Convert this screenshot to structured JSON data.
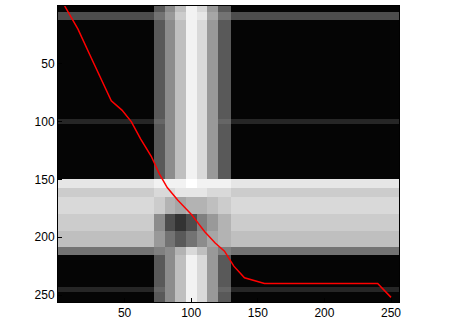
{
  "chart_data": {
    "type": "heatmap",
    "xlim": [
      0,
      256
    ],
    "ylim": [
      256,
      0
    ],
    "xticks": [
      50,
      100,
      150,
      200,
      250
    ],
    "yticks": [
      50,
      100,
      150,
      200,
      250
    ],
    "cells": {
      "x_edges": [
        0,
        72,
        80,
        88,
        96,
        104,
        112,
        120,
        130,
        256
      ],
      "y_edges": [
        0,
        5,
        12,
        98,
        102,
        150,
        157,
        165,
        180,
        195,
        208,
        215,
        243,
        247,
        256
      ],
      "z": [
        [
          0.02,
          0.35,
          0.55,
          0.75,
          0.95,
          0.85,
          0.6,
          0.35,
          0.02
        ],
        [
          0.3,
          0.45,
          0.6,
          0.8,
          0.95,
          0.9,
          0.65,
          0.45,
          0.3
        ],
        [
          0.02,
          0.35,
          0.55,
          0.75,
          0.95,
          0.85,
          0.6,
          0.35,
          0.02
        ],
        [
          0.15,
          0.4,
          0.55,
          0.75,
          0.95,
          0.85,
          0.6,
          0.4,
          0.15
        ],
        [
          0.02,
          0.35,
          0.55,
          0.75,
          0.95,
          0.85,
          0.6,
          0.35,
          0.02
        ],
        [
          0.9,
          0.95,
          0.95,
          0.95,
          1,
          0.95,
          0.95,
          0.95,
          0.9
        ],
        [
          0.8,
          0.85,
          0.85,
          0.9,
          0.9,
          0.9,
          0.85,
          0.85,
          0.8
        ],
        [
          0.85,
          0.8,
          0.7,
          0.65,
          0.7,
          0.7,
          0.75,
          0.8,
          0.85
        ],
        [
          0.8,
          0.55,
          0.3,
          0.2,
          0.3,
          0.5,
          0.6,
          0.7,
          0.8
        ],
        [
          0.75,
          0.6,
          0.45,
          0.35,
          0.45,
          0.55,
          0.65,
          0.7,
          0.75
        ],
        [
          0.45,
          0.5,
          0.55,
          0.7,
          0.85,
          0.75,
          0.6,
          0.5,
          0.45
        ],
        [
          0.02,
          0.35,
          0.55,
          0.75,
          0.95,
          0.85,
          0.6,
          0.35,
          0.02
        ],
        [
          0.15,
          0.4,
          0.55,
          0.75,
          0.95,
          0.85,
          0.6,
          0.4,
          0.15
        ],
        [
          0.02,
          0.35,
          0.55,
          0.75,
          0.95,
          0.85,
          0.6,
          0.35,
          0.02
        ]
      ],
      "color_range": [
        0,
        1
      ]
    },
    "series": [
      {
        "type": "line",
        "color": "#ff0000",
        "x": [
          5,
          15,
          25,
          35,
          40,
          48,
          55,
          62,
          70,
          76,
          82,
          90,
          100,
          110,
          118,
          125,
          132,
          140,
          155,
          200,
          240,
          250
        ],
        "values": [
          0,
          20,
          45,
          70,
          82,
          90,
          100,
          115,
          130,
          145,
          157,
          168,
          180,
          195,
          205,
          212,
          225,
          235,
          240,
          240,
          240,
          252
        ]
      }
    ]
  }
}
